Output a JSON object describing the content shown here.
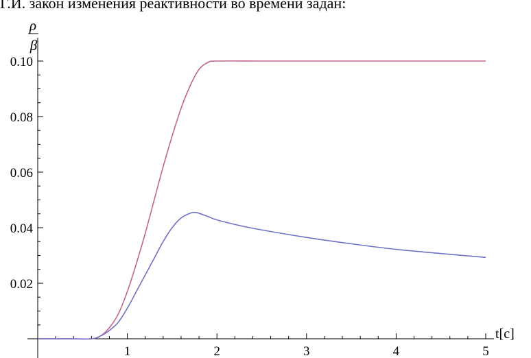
{
  "heading_text": "Г.И. закон изменения реактивности во времени задан:",
  "chart_data": {
    "type": "line",
    "title": "",
    "ylabel_numerator": "ρ",
    "ylabel_denominator": "β",
    "xlabel": "t[c]",
    "xlim": [
      0,
      5
    ],
    "ylim": [
      0,
      0.1
    ],
    "grid": false,
    "x_ticks": [
      1,
      2,
      3,
      4,
      5
    ],
    "y_ticks": [
      0.02,
      0.04,
      0.06,
      0.08,
      0.1
    ],
    "y_tick_labels": [
      "0.02",
      "0.04",
      "0.06",
      "0.08",
      "0.10"
    ],
    "series": [
      {
        "color": "#c0668e",
        "points": [
          [
            0,
            0
          ],
          [
            0.2,
            0
          ],
          [
            0.4,
            0
          ],
          [
            0.6,
            0
          ],
          [
            0.7,
            0.001
          ],
          [
            0.8,
            0.004
          ],
          [
            0.9,
            0.009
          ],
          [
            1.0,
            0.017
          ],
          [
            1.1,
            0.027
          ],
          [
            1.2,
            0.038
          ],
          [
            1.3,
            0.05
          ],
          [
            1.4,
            0.062
          ],
          [
            1.5,
            0.073
          ],
          [
            1.6,
            0.083
          ],
          [
            1.7,
            0.091
          ],
          [
            1.8,
            0.097
          ],
          [
            1.9,
            0.0995
          ],
          [
            2.0,
            0.1
          ],
          [
            2.5,
            0.1
          ],
          [
            3.0,
            0.1
          ],
          [
            3.5,
            0.1
          ],
          [
            4.0,
            0.1
          ],
          [
            4.5,
            0.1
          ],
          [
            5.0,
            0.1
          ]
        ]
      },
      {
        "color": "#6f72c4",
        "points": [
          [
            0,
            0
          ],
          [
            0.2,
            0
          ],
          [
            0.4,
            0
          ],
          [
            0.6,
            0
          ],
          [
            0.7,
            0.001
          ],
          [
            0.8,
            0.003
          ],
          [
            0.9,
            0.006
          ],
          [
            1.0,
            0.011
          ],
          [
            1.1,
            0.017
          ],
          [
            1.2,
            0.023
          ],
          [
            1.3,
            0.029
          ],
          [
            1.4,
            0.035
          ],
          [
            1.5,
            0.04
          ],
          [
            1.6,
            0.0435
          ],
          [
            1.7,
            0.0452
          ],
          [
            1.75,
            0.0455
          ],
          [
            1.8,
            0.0452
          ],
          [
            1.9,
            0.044
          ],
          [
            2.0,
            0.0428
          ],
          [
            2.25,
            0.0408
          ],
          [
            2.5,
            0.0392
          ],
          [
            3.0,
            0.0365
          ],
          [
            3.5,
            0.0342
          ],
          [
            4.0,
            0.0322
          ],
          [
            4.5,
            0.0307
          ],
          [
            5.0,
            0.0293
          ]
        ]
      }
    ]
  }
}
